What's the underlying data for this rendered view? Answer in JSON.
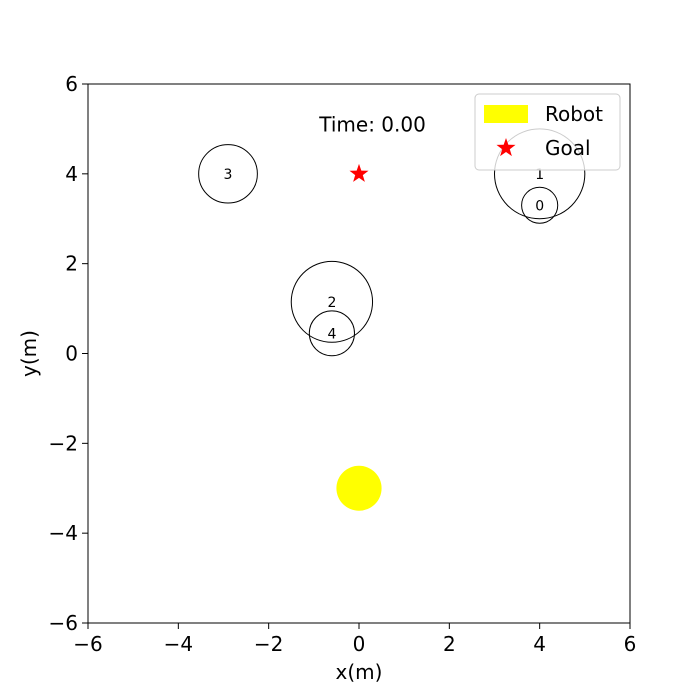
{
  "chart_data": {
    "type": "scatter",
    "title": "",
    "xlabel": "x(m)",
    "ylabel": "y(m)",
    "xlim": [
      -6,
      6
    ],
    "ylim": [
      -6,
      6
    ],
    "xticks": [
      -6,
      -4,
      -2,
      0,
      2,
      4,
      6
    ],
    "yticks": [
      -6,
      -4,
      -2,
      0,
      2,
      4,
      6
    ],
    "xtick_labels": [
      "−6",
      "−4",
      "−2",
      "0",
      "2",
      "4",
      "6"
    ],
    "ytick_labels": [
      "−6",
      "−4",
      "−2",
      "0",
      "2",
      "4",
      "6"
    ],
    "grid": false,
    "annotation": "Time: 0.00",
    "annotation_pos": [
      0.3,
      5.1
    ],
    "robot": {
      "x": 0.0,
      "y": -3.0,
      "r": 0.5,
      "color": "#ffff00"
    },
    "goal": {
      "x": 0.0,
      "y": 4.0,
      "color": "#ff0000"
    },
    "obstacles": [
      {
        "id": "0",
        "x": 4.0,
        "y": 3.3,
        "r": 0.4
      },
      {
        "id": "1",
        "x": 4.0,
        "y": 4.0,
        "r": 1.0
      },
      {
        "id": "2",
        "x": -0.6,
        "y": 1.15,
        "r": 0.9
      },
      {
        "id": "3",
        "x": -2.9,
        "y": 4.0,
        "r": 0.65
      },
      {
        "id": "4",
        "x": -0.6,
        "y": 0.45,
        "r": 0.5
      }
    ],
    "legend": {
      "placement": "top-right",
      "entries": [
        {
          "label": "Robot",
          "marker": "rect",
          "color": "#ffff00"
        },
        {
          "label": "Goal",
          "marker": "star",
          "color": "#ff0000"
        }
      ]
    }
  }
}
